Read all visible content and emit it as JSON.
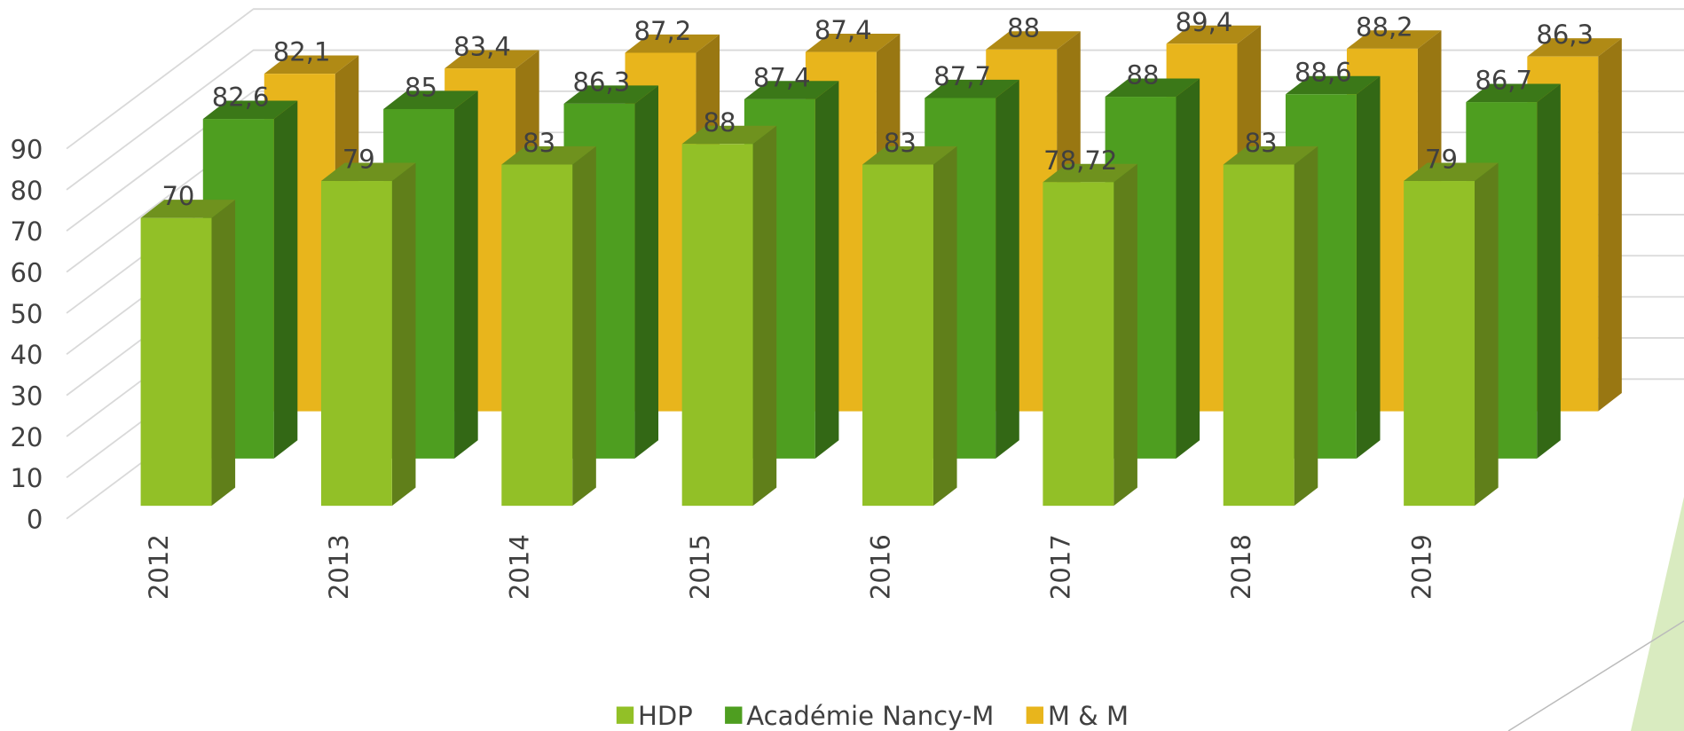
{
  "chart_data": {
    "type": "bar3d",
    "categories": [
      "2012",
      "2013",
      "2014",
      "2015",
      "2016",
      "2017",
      "2018",
      "2019"
    ],
    "series": [
      {
        "name": "HDP",
        "color": "#92c027",
        "values": [
          70,
          79,
          83,
          88,
          83,
          78.72,
          83,
          79
        ],
        "value_labels": [
          "70",
          "79",
          "83",
          "88",
          "83",
          "78,72",
          "83",
          "79"
        ]
      },
      {
        "name": "Académie Nancy-M",
        "color": "#4e9e20",
        "values": [
          82.6,
          85,
          86.3,
          87.4,
          87.7,
          88,
          88.6,
          86.7
        ],
        "value_labels": [
          "82,6",
          "85",
          "86,3",
          "87,4",
          "87,7",
          "88",
          "88,6",
          "86,7"
        ]
      },
      {
        "name": "M & M",
        "color": "#e8b51c",
        "values": [
          82.1,
          83.4,
          87.2,
          87.4,
          88,
          89.4,
          88.2,
          86.3
        ],
        "value_labels": [
          "82,1",
          "83,4",
          "87,2",
          "87,4",
          "88",
          "89,4",
          "88,2",
          "86,3"
        ]
      }
    ],
    "ylim": [
      0,
      90
    ],
    "yticks": [
      0,
      10,
      20,
      30,
      40,
      50,
      60,
      70,
      80,
      90
    ],
    "grid": true,
    "legend": "bottom"
  }
}
